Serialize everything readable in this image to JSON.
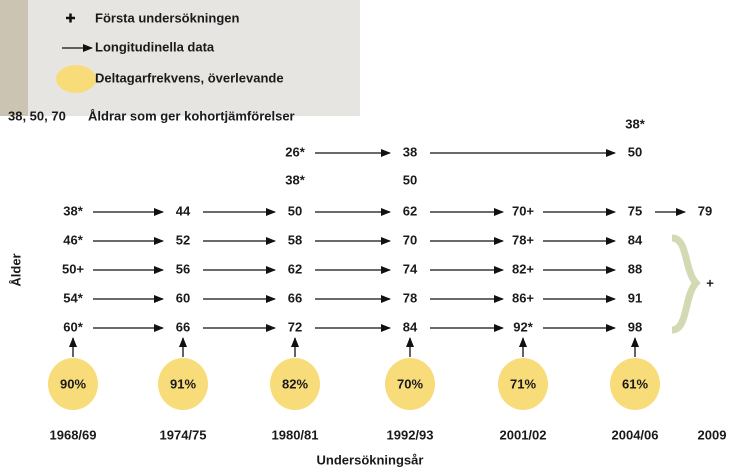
{
  "legend": {
    "first_survey": "Första undersökningen",
    "longitudinal": "Longitudinella data",
    "participation": "Deltagarfrekvens, överlevande",
    "cohort_ages": "38, 50, 70",
    "cohort_text": "Åldrar som ger kohortjämförelser"
  },
  "y_label": "Ålder",
  "x_label": "Undersökningsår",
  "years": [
    "1968/69",
    "1974/75",
    "1980/81",
    "1992/93",
    "2001/02",
    "2004/06",
    "2009"
  ],
  "participation": [
    "90%",
    "91%",
    "82%",
    "70%",
    "71%",
    "61%"
  ],
  "rows": [
    [
      null,
      null,
      null,
      null,
      null,
      "38*",
      null
    ],
    [
      null,
      null,
      "26*",
      "38",
      null,
      "50",
      null
    ],
    [
      null,
      null,
      "38*",
      "50",
      null,
      null,
      null
    ],
    [
      "38*",
      "44",
      "50",
      "62",
      "70+",
      "75",
      "79"
    ],
    [
      "46*",
      "52",
      "58",
      "70",
      "78+",
      "84",
      null
    ],
    [
      "50+",
      "56",
      "62",
      "74",
      "82+",
      "88",
      null
    ],
    [
      "54*",
      "60",
      "66",
      "78",
      "86+",
      "91",
      null
    ],
    [
      "60*",
      "66",
      "72",
      "84",
      "92*",
      "98",
      null
    ]
  ],
  "bracket_label": "+"
}
